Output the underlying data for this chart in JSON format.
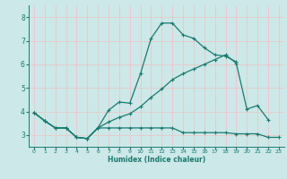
{
  "title": "",
  "xlabel": "Humidex (Indice chaleur)",
  "background_color": "#cce8e8",
  "grid_color": "#e8c8c8",
  "line_color": "#1a7a6e",
  "xlim": [
    -0.5,
    23.5
  ],
  "ylim": [
    2.5,
    8.5
  ],
  "xticks": [
    0,
    1,
    2,
    3,
    4,
    5,
    6,
    7,
    8,
    9,
    10,
    11,
    12,
    13,
    14,
    15,
    16,
    17,
    18,
    19,
    20,
    21,
    22,
    23
  ],
  "yticks": [
    3,
    4,
    5,
    6,
    7,
    8
  ],
  "series": [
    {
      "x": [
        0,
        1,
        2,
        3,
        4,
        5,
        6,
        7,
        8,
        9,
        10,
        11,
        12,
        13,
        14,
        15,
        16,
        17,
        18,
        19
      ],
      "y": [
        3.95,
        3.6,
        3.3,
        3.3,
        2.9,
        2.85,
        3.3,
        4.05,
        4.4,
        4.35,
        5.6,
        7.1,
        7.75,
        7.75,
        7.25,
        7.1,
        6.7,
        6.4,
        6.35,
        6.1
      ]
    },
    {
      "x": [
        0,
        1,
        2,
        3,
        4,
        5,
        6,
        7,
        8,
        9,
        10,
        11,
        12,
        13,
        14,
        15,
        16,
        17,
        18,
        19,
        20,
        21,
        22,
        23
      ],
      "y": [
        3.95,
        3.6,
        3.3,
        3.3,
        2.9,
        2.85,
        3.3,
        3.3,
        3.3,
        3.3,
        3.3,
        3.3,
        3.3,
        3.3,
        3.1,
        3.1,
        3.1,
        3.1,
        3.1,
        3.05,
        3.05,
        3.05,
        2.9,
        2.9
      ]
    },
    {
      "x": [
        0,
        1,
        2,
        3,
        4,
        5,
        6,
        7,
        8,
        9,
        10,
        11,
        12,
        13,
        14,
        15,
        16,
        17,
        18,
        19,
        20,
        21,
        22
      ],
      "y": [
        3.95,
        3.6,
        3.3,
        3.3,
        2.9,
        2.85,
        3.3,
        3.55,
        3.75,
        3.9,
        4.2,
        4.6,
        4.95,
        5.35,
        5.6,
        5.8,
        6.0,
        6.2,
        6.4,
        6.05,
        4.1,
        4.25,
        3.65
      ]
    }
  ]
}
